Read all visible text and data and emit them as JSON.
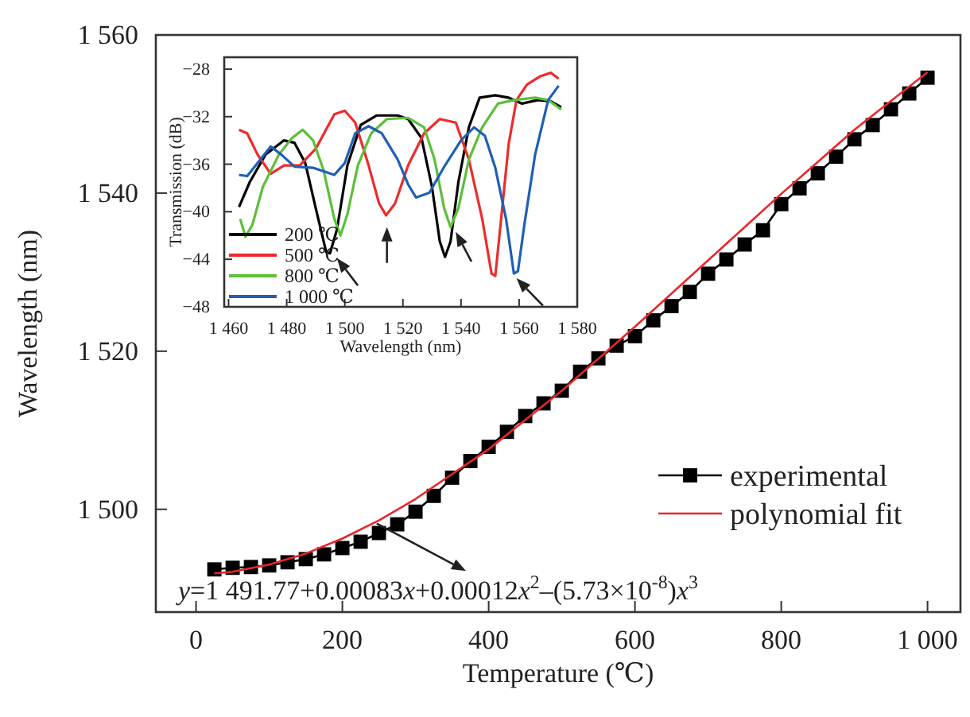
{
  "chart_data": [
    {
      "type": "line",
      "xlabel": "Temperature (℃)",
      "ylabel": "Wavelength (nm)",
      "xlim": [
        -55,
        1045
      ],
      "ylim": [
        1487,
        1560
      ],
      "xticks": [
        0,
        200,
        400,
        600,
        800,
        {
          "value": 1000,
          "label": "1 000"
        }
      ],
      "yticks": [
        {
          "value": 1500,
          "label": "1 500"
        },
        {
          "value": 1520,
          "label": "1 520"
        },
        {
          "value": 1540,
          "label": "1 540"
        },
        {
          "value": 1560,
          "label": "1 560"
        }
      ],
      "grid": false,
      "legend": "bottom right",
      "annotations": [
        "y=1 491.77+0.00083x+0.00012x$^{2}$–(5.73×10$^{-8}$)x$^{3}$"
      ],
      "series": [
        {
          "name": "experimental",
          "color": "#000000",
          "marker": "square",
          "x": [
            25,
            50,
            75,
            100,
            125,
            150,
            175,
            200,
            225,
            250,
            275,
            300,
            325,
            350,
            375,
            400,
            425,
            450,
            475,
            500,
            525,
            550,
            575,
            600,
            625,
            650,
            675,
            700,
            725,
            750,
            775,
            800,
            825,
            850,
            875,
            900,
            925,
            950,
            975,
            1000
          ],
          "values": [
            1492.4,
            1492.6,
            1492.7,
            1492.9,
            1493.3,
            1493.7,
            1494.3,
            1495.1,
            1495.9,
            1497.0,
            1498.1,
            1499.7,
            1501.7,
            1504.0,
            1506.1,
            1507.9,
            1509.8,
            1511.8,
            1513.4,
            1515.0,
            1517.4,
            1519.1,
            1520.7,
            1521.9,
            1523.9,
            1525.7,
            1527.5,
            1529.8,
            1531.6,
            1533.5,
            1535.3,
            1538.6,
            1540.6,
            1542.5,
            1544.6,
            1546.8,
            1548.6,
            1550.6,
            1552.6,
            1554.6
          ]
        },
        {
          "name": "polynomial fit",
          "color": "#e8262a",
          "marker": "none",
          "x": [
            25,
            50,
            100,
            150,
            200,
            250,
            300,
            400,
            500,
            600,
            700,
            800,
            900,
            1000
          ],
          "values": [
            1491.9,
            1492.1,
            1493.0,
            1494.4,
            1496.3,
            1498.6,
            1501.3,
            1507.6,
            1515.0,
            1523.1,
            1531.5,
            1539.9,
            1548.0,
            1555.3
          ]
        }
      ]
    },
    {
      "type": "line",
      "xlabel": "Wavelength (nm)",
      "ylabel": "Transmission (dB)",
      "xlim": [
        1458.5,
        1580
      ],
      "ylim": [
        -48,
        -27
      ],
      "xticks": [
        {
          "value": 1460,
          "label": "1 460"
        },
        {
          "value": 1480,
          "label": "1 480"
        },
        {
          "value": 1500,
          "label": "1 500"
        },
        {
          "value": 1520,
          "label": "1 520"
        },
        {
          "value": 1540,
          "label": "1 540"
        },
        {
          "value": 1560,
          "label": "1 560"
        },
        {
          "value": 1580,
          "label": "1 580"
        }
      ],
      "yticks": [
        {
          "value": -28,
          "label": "−28"
        },
        {
          "value": -32,
          "label": "−32"
        },
        {
          "value": -36,
          "label": "−36"
        },
        {
          "value": -40,
          "label": "−40"
        },
        {
          "value": -44,
          "label": "−44"
        },
        {
          "value": -48,
          "label": "−48"
        }
      ],
      "grid": false,
      "legend": "bottom left",
      "series": [
        {
          "name": "200 ℃",
          "color": "#000000",
          "x": [
            1463.6,
            1467.3,
            1472.7,
            1479,
            1482.7,
            1486.4,
            1490,
            1493.6,
            1494.9,
            1497.3,
            1500.9,
            1505.5,
            1510.9,
            1518.2,
            1521.8,
            1526.4,
            1530,
            1532.7,
            1534.5,
            1536.4,
            1539.1,
            1542.7,
            1546.4,
            1551.8,
            1556.4,
            1560.9,
            1566.4,
            1570.9,
            1574.5
          ],
          "values": [
            -39.6,
            -37.5,
            -35.2,
            -34.0,
            -34.2,
            -35.9,
            -39.7,
            -43.4,
            -43.5,
            -41.5,
            -36.1,
            -32.7,
            -31.9,
            -31.9,
            -32.2,
            -33.8,
            -37.9,
            -42.5,
            -43.8,
            -42.5,
            -37.5,
            -32.9,
            -30.4,
            -30.2,
            -30.4,
            -30.9,
            -30.6,
            -30.7,
            -31.2
          ]
        },
        {
          "name": "500 ℃",
          "color": "#ee2b2b",
          "x": [
            1463.6,
            1466.4,
            1470,
            1474.5,
            1479.1,
            1484.5,
            1490,
            1496.4,
            1500,
            1503.6,
            1508.2,
            1511.8,
            1514.2,
            1517.3,
            1521.8,
            1527.3,
            1532.7,
            1538.2,
            1542.7,
            1547.3,
            1550.5,
            1551.8,
            1553.6,
            1556.4,
            1559.1,
            1562.7,
            1567.3,
            1570.9,
            1573.6
          ],
          "values": [
            -33.1,
            -33.4,
            -35.2,
            -36.8,
            -36.1,
            -36.1,
            -34.7,
            -31.8,
            -31.5,
            -32.5,
            -36.1,
            -39.3,
            -40.3,
            -39.3,
            -36.1,
            -33.4,
            -32.2,
            -32.5,
            -35.6,
            -40.6,
            -45.2,
            -45.4,
            -41.1,
            -34.3,
            -30.6,
            -29.3,
            -28.6,
            -28.3,
            -28.8
          ]
        },
        {
          "name": "800 ℃",
          "color": "#5cbf3a",
          "x": [
            1464,
            1465.8,
            1468.2,
            1471.8,
            1477.3,
            1481.8,
            1485.5,
            1489.1,
            1492.7,
            1496.4,
            1498.5,
            1500.9,
            1504.5,
            1509.1,
            1514.5,
            1521.8,
            1527.3,
            1530.9,
            1534.2,
            1536.4,
            1539.1,
            1542.7,
            1547.3,
            1552.7,
            1558.2,
            1565.5,
            1570,
            1574.5
          ],
          "values": [
            -40.6,
            -42.1,
            -41.1,
            -37.9,
            -35.2,
            -33.8,
            -33.1,
            -34.0,
            -36.5,
            -40.6,
            -42.0,
            -40.2,
            -36.1,
            -33.4,
            -32.2,
            -32.1,
            -32.9,
            -35.6,
            -39.7,
            -41.3,
            -39.7,
            -35.6,
            -32.9,
            -30.9,
            -30.6,
            -30.4,
            -30.6,
            -31.4
          ]
        },
        {
          "name": "1 000 ℃",
          "color": "#1f5fb5",
          "x": [
            1463.6,
            1466.4,
            1470,
            1474.5,
            1478.2,
            1482.7,
            1489.1,
            1492.7,
            1496.4,
            1500,
            1503.6,
            1508.2,
            1512.7,
            1518.2,
            1521.8,
            1524.5,
            1529.1,
            1534.5,
            1540,
            1544.5,
            1548.2,
            1551.8,
            1555.5,
            1558.2,
            1559.6,
            1561.8,
            1565.5,
            1570,
            1573.6
          ],
          "values": [
            -36.9,
            -37.0,
            -35.9,
            -34.5,
            -35.2,
            -36.2,
            -36.3,
            -36.6,
            -36.9,
            -35.9,
            -33.4,
            -32.8,
            -33.4,
            -35.6,
            -37.7,
            -38.8,
            -38.4,
            -36.1,
            -34.0,
            -32.9,
            -33.6,
            -36.3,
            -40.6,
            -45.2,
            -45.0,
            -41.1,
            -35.2,
            -30.6,
            -29.4
          ]
        }
      ]
    }
  ]
}
